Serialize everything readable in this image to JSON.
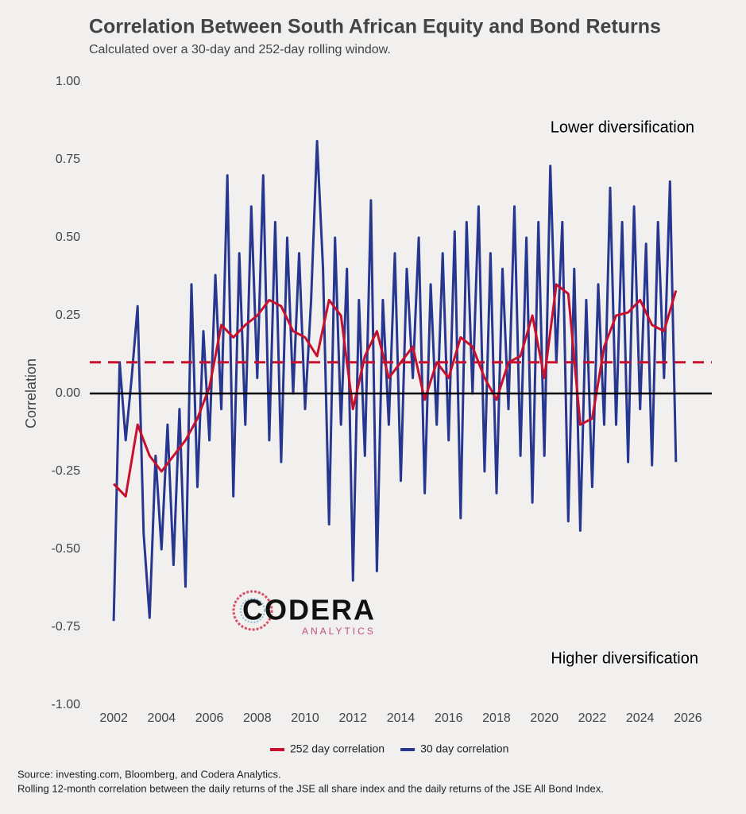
{
  "chart_data": {
    "type": "line",
    "title": "Correlation Between South African Equity and Bond Returns",
    "subtitle": "Calculated over a 30-day and 252-day rolling window.",
    "y_label": "Correlation",
    "annotations": [
      "Lower diversification",
      "Higher diversification"
    ],
    "notes": [
      "Source: investing.com, Bloomberg, and Codera Analytics.",
      "Rolling 12-month correlation between the daily returns of the JSE all share index and the daily returns of the JSE All Bond Index."
    ],
    "logo": {
      "name": "CODERA",
      "tagline": "ANALYTICS"
    },
    "xlim": [
      2001,
      2027
    ],
    "xticks": [
      2002,
      2004,
      2006,
      2008,
      2010,
      2012,
      2014,
      2016,
      2018,
      2020,
      2022,
      2024,
      2026
    ],
    "ylim": [
      -1,
      1
    ],
    "yticks": [
      {
        "value": 1,
        "label": "1.00"
      },
      {
        "value": 0.75,
        "label": "0.75"
      },
      {
        "value": 0.5,
        "label": "0.50"
      },
      {
        "value": 0.25,
        "label": "0.25"
      },
      {
        "value": 0,
        "label": "0.00"
      },
      {
        "value": -0.25,
        "label": "-0.25"
      },
      {
        "value": -0.5,
        "label": "-0.50"
      },
      {
        "value": -0.75,
        "label": "-0.75"
      },
      {
        "value": -1,
        "label": "-1.00"
      }
    ],
    "grid": false,
    "legend": "bottom",
    "reference_lines": [
      {
        "value": 0,
        "color": "#000000",
        "style": "solid"
      },
      {
        "value": 0.1,
        "color": "#c8102e",
        "style": "dashed"
      }
    ],
    "series": [
      {
        "name": "252 day correlation",
        "color": "#c8102e",
        "x": [
          2002.0,
          2002.5,
          2003.0,
          2003.5,
          2004.0,
          2004.5,
          2005.0,
          2005.5,
          2006.0,
          2006.5,
          2007.0,
          2007.5,
          2008.0,
          2008.5,
          2009.0,
          2009.5,
          2010.0,
          2010.5,
          2011.0,
          2011.5,
          2012.0,
          2012.5,
          2013.0,
          2013.5,
          2014.0,
          2014.5,
          2015.0,
          2015.5,
          2016.0,
          2016.5,
          2017.0,
          2017.5,
          2018.0,
          2018.5,
          2019.0,
          2019.5,
          2020.0,
          2020.5,
          2021.0,
          2021.5,
          2022.0,
          2022.5,
          2023.0,
          2023.5,
          2024.0,
          2024.5,
          2025.0,
          2025.5
        ],
        "values": [
          -0.29,
          -0.33,
          -0.1,
          -0.2,
          -0.25,
          -0.2,
          -0.15,
          -0.08,
          0.02,
          0.22,
          0.18,
          0.22,
          0.25,
          0.3,
          0.28,
          0.2,
          0.18,
          0.12,
          0.3,
          0.25,
          -0.05,
          0.12,
          0.2,
          0.05,
          0.1,
          0.15,
          -0.02,
          0.1,
          0.05,
          0.18,
          0.15,
          0.05,
          -0.02,
          0.1,
          0.12,
          0.25,
          0.05,
          0.35,
          0.32,
          -0.1,
          -0.08,
          0.15,
          0.25,
          0.26,
          0.3,
          0.22,
          0.2,
          0.33
        ]
      },
      {
        "name": "30 day correlation",
        "color": "#27378f",
        "x": [
          2002.0,
          2002.25,
          2002.5,
          2002.75,
          2003.0,
          2003.25,
          2003.5,
          2003.75,
          2004.0,
          2004.25,
          2004.5,
          2004.75,
          2005.0,
          2005.25,
          2005.5,
          2005.75,
          2006.0,
          2006.25,
          2006.5,
          2006.75,
          2007.0,
          2007.25,
          2007.5,
          2007.75,
          2008.0,
          2008.25,
          2008.5,
          2008.75,
          2009.0,
          2009.25,
          2009.5,
          2009.75,
          2010.0,
          2010.25,
          2010.5,
          2010.75,
          2011.0,
          2011.25,
          2011.5,
          2011.75,
          2012.0,
          2012.25,
          2012.5,
          2012.75,
          2013.0,
          2013.25,
          2013.5,
          2013.75,
          2014.0,
          2014.25,
          2014.5,
          2014.75,
          2015.0,
          2015.25,
          2015.5,
          2015.75,
          2016.0,
          2016.25,
          2016.5,
          2016.75,
          2017.0,
          2017.25,
          2017.5,
          2017.75,
          2018.0,
          2018.25,
          2018.5,
          2018.75,
          2019.0,
          2019.25,
          2019.5,
          2019.75,
          2020.0,
          2020.25,
          2020.5,
          2020.75,
          2021.0,
          2021.25,
          2021.5,
          2021.75,
          2022.0,
          2022.25,
          2022.5,
          2022.75,
          2023.0,
          2023.25,
          2023.5,
          2023.75,
          2024.0,
          2024.25,
          2024.5,
          2024.75,
          2025.0,
          2025.25,
          2025.5
        ],
        "values": [
          -0.73,
          0.1,
          -0.15,
          0.05,
          0.28,
          -0.45,
          -0.72,
          -0.2,
          -0.5,
          -0.1,
          -0.55,
          -0.05,
          -0.62,
          0.35,
          -0.3,
          0.2,
          -0.15,
          0.38,
          -0.05,
          0.7,
          -0.33,
          0.45,
          -0.1,
          0.6,
          0.05,
          0.7,
          -0.15,
          0.55,
          -0.22,
          0.5,
          0.0,
          0.45,
          -0.05,
          0.3,
          0.81,
          0.4,
          -0.42,
          0.5,
          -0.1,
          0.4,
          -0.6,
          0.3,
          -0.2,
          0.62,
          -0.57,
          0.3,
          -0.1,
          0.45,
          -0.28,
          0.4,
          0.05,
          0.5,
          -0.32,
          0.35,
          -0.1,
          0.45,
          -0.15,
          0.52,
          -0.4,
          0.55,
          0.0,
          0.6,
          -0.25,
          0.45,
          -0.32,
          0.4,
          -0.05,
          0.6,
          -0.2,
          0.5,
          -0.35,
          0.55,
          -0.2,
          0.73,
          0.1,
          0.55,
          -0.41,
          0.4,
          -0.44,
          0.3,
          -0.3,
          0.35,
          -0.1,
          0.66,
          -0.1,
          0.55,
          -0.22,
          0.6,
          -0.05,
          0.48,
          -0.23,
          0.55,
          0.05,
          0.68,
          -0.22
        ]
      }
    ]
  }
}
